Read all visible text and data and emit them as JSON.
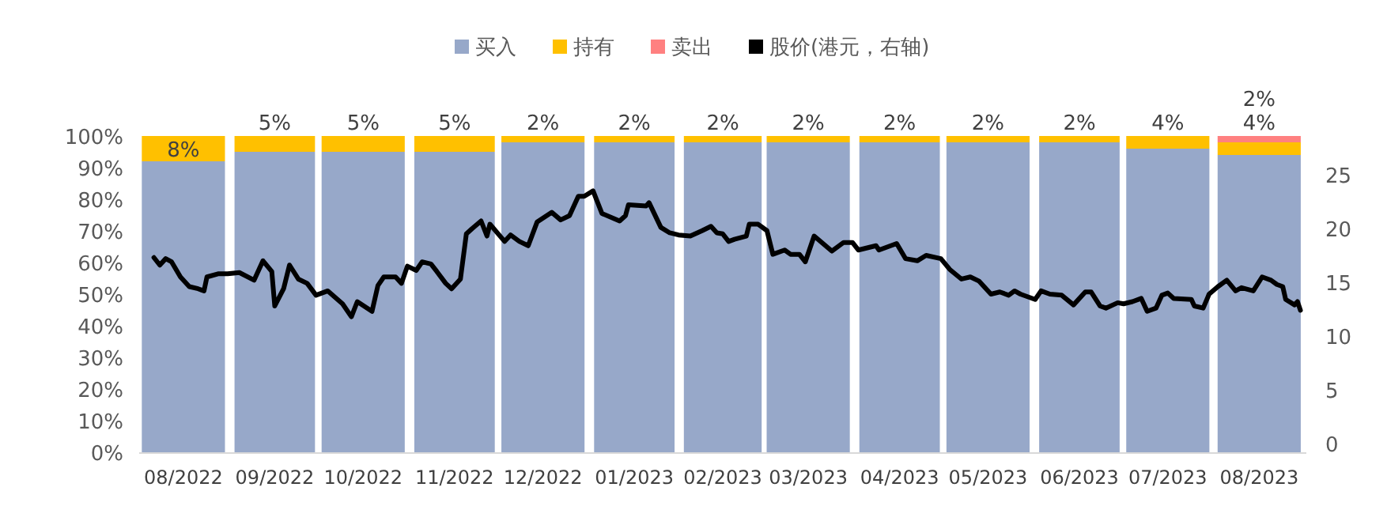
{
  "chart_data": {
    "type": "bar",
    "stacked": true,
    "legend": "top",
    "x": [
      "2022-08-16",
      "2022-09-16",
      "2022-10-16",
      "2022-11-16",
      "2022-12-16",
      "2023-01-16",
      "2023-02-15",
      "2023-03-16",
      "2023-04-16",
      "2023-05-16",
      "2023-06-16",
      "2023-07-16",
      "2023-08-16"
    ],
    "xlim": [
      "2022-08-01",
      "2023-09-01"
    ],
    "xticks": [
      {
        "value": "2022-08-16",
        "label": "08/2022"
      },
      {
        "value": "2022-09-16",
        "label": "09/2022"
      },
      {
        "value": "2022-10-16",
        "label": "10/2022"
      },
      {
        "value": "2022-11-16",
        "label": "11/2022"
      },
      {
        "value": "2022-12-16",
        "label": "12/2022"
      },
      {
        "value": "2023-01-16",
        "label": "01/2023"
      },
      {
        "value": "2023-02-15",
        "label": "02/2023"
      },
      {
        "value": "2023-03-16",
        "label": "03/2023"
      },
      {
        "value": "2023-04-16",
        "label": "04/2023"
      },
      {
        "value": "2023-05-16",
        "label": "05/2023"
      },
      {
        "value": "2023-06-16",
        "label": "06/2023"
      },
      {
        "value": "2023-07-16",
        "label": "07/2023"
      },
      {
        "value": "2023-08-16",
        "label": "08/2023"
      }
    ],
    "ylim": [
      0,
      100
    ],
    "yticks": [
      {
        "value": 0,
        "label": "0%"
      },
      {
        "value": 10,
        "label": "10%"
      },
      {
        "value": 20,
        "label": "20%"
      },
      {
        "value": 30,
        "label": "30%"
      },
      {
        "value": 40,
        "label": "40%"
      },
      {
        "value": 50,
        "label": "50%"
      },
      {
        "value": 60,
        "label": "60%"
      },
      {
        "value": 70,
        "label": "70%"
      },
      {
        "value": 80,
        "label": "80%"
      },
      {
        "value": 90,
        "label": "90%"
      },
      {
        "value": 100,
        "label": "100%"
      }
    ],
    "y2lim": [
      -0.8,
      28.6
    ],
    "y2ticks": [
      0,
      5,
      10,
      15,
      20,
      25
    ],
    "series": [
      {
        "name": "买入",
        "color": "#97a8c9",
        "values": [
          92,
          95,
          95,
          95,
          98,
          98,
          98,
          98,
          98,
          98,
          98,
          96,
          94
        ]
      },
      {
        "name": "持有",
        "color": "#ffc000",
        "values": [
          8,
          5,
          5,
          5,
          2,
          2,
          2,
          2,
          2,
          2,
          2,
          4,
          4
        ],
        "value_labels": [
          "8%",
          "5%",
          "5%",
          "5%",
          "2%",
          "2%",
          "2%",
          "2%",
          "2%",
          "2%",
          "2%",
          "4%",
          "4%"
        ]
      },
      {
        "name": "卖出",
        "color": "#ff8080",
        "values": [
          0,
          0,
          0,
          0,
          0,
          0,
          0,
          0,
          0,
          0,
          0,
          0,
          2
        ],
        "value_labels": [
          null,
          null,
          null,
          null,
          null,
          null,
          null,
          null,
          null,
          null,
          null,
          null,
          "2%"
        ]
      },
      {
        "name": "股价(港元，右轴)",
        "type": "line",
        "axis": "y2",
        "color": "#000000",
        "x": [
          "2022-08-06",
          "2022-08-08",
          "2022-08-10",
          "2022-08-12",
          "2022-08-15",
          "2022-08-18",
          "2022-08-21",
          "2022-08-23",
          "2022-08-24",
          "2022-08-28",
          "2022-08-31",
          "2022-09-04",
          "2022-09-09",
          "2022-09-12",
          "2022-09-15",
          "2022-09-16",
          "2022-09-19",
          "2022-09-21",
          "2022-09-24",
          "2022-09-27",
          "2022-09-30",
          "2022-10-04",
          "2022-10-09",
          "2022-10-12",
          "2022-10-14",
          "2022-10-19",
          "2022-10-21",
          "2022-10-23",
          "2022-10-27",
          "2022-10-29",
          "2022-10-31",
          "2022-11-03",
          "2022-11-05",
          "2022-11-08",
          "2022-11-10",
          "2022-11-13",
          "2022-11-15",
          "2022-11-18",
          "2022-11-20",
          "2022-11-22",
          "2022-11-25",
          "2022-11-27",
          "2022-11-28",
          "2022-12-03",
          "2022-12-05",
          "2022-12-08",
          "2022-12-11",
          "2022-12-14",
          "2022-12-19",
          "2022-12-22",
          "2022-12-25",
          "2022-12-28",
          "2022-12-30",
          "2023-01-02",
          "2023-01-05",
          "2023-01-11",
          "2023-01-13",
          "2023-01-14",
          "2023-01-20",
          "2023-01-21",
          "2023-01-25",
          "2023-01-28",
          "2023-01-31",
          "2023-02-04",
          "2023-02-08",
          "2023-02-11",
          "2023-02-13",
          "2023-02-15",
          "2023-02-17",
          "2023-02-19",
          "2023-02-23",
          "2023-02-24",
          "2023-02-27",
          "2023-03-02",
          "2023-03-04",
          "2023-03-08",
          "2023-03-10",
          "2023-03-13",
          "2023-03-15",
          "2023-03-18",
          "2023-03-24",
          "2023-03-28",
          "2023-03-31",
          "2023-04-02",
          "2023-04-08",
          "2023-04-09",
          "2023-04-15",
          "2023-04-18",
          "2023-04-22",
          "2023-04-25",
          "2023-04-30",
          "2023-05-03",
          "2023-05-07",
          "2023-05-10",
          "2023-05-13",
          "2023-05-17",
          "2023-05-20",
          "2023-05-23",
          "2023-05-25",
          "2023-05-27",
          "2023-06-01",
          "2023-06-03",
          "2023-06-06",
          "2023-06-10",
          "2023-06-14",
          "2023-06-18",
          "2023-06-20",
          "2023-06-23",
          "2023-06-25",
          "2023-06-29",
          "2023-07-01",
          "2023-07-04",
          "2023-07-07",
          "2023-07-09",
          "2023-07-12",
          "2023-07-14",
          "2023-07-16",
          "2023-07-18",
          "2023-07-24",
          "2023-07-25",
          "2023-07-28",
          "2023-07-30",
          "2023-08-02",
          "2023-08-05",
          "2023-08-08",
          "2023-08-10",
          "2023-08-14",
          "2023-08-17",
          "2023-08-20",
          "2023-08-22",
          "2023-08-24",
          "2023-08-25",
          "2023-08-28",
          "2023-08-29",
          "2023-08-30"
        ],
        "values": [
          17.3,
          16.6,
          17.2,
          16.9,
          15.5,
          14.6,
          14.4,
          14.2,
          15.5,
          15.8,
          15.8,
          15.9,
          15.2,
          17.0,
          16.0,
          12.8,
          14.4,
          16.6,
          15.3,
          14.9,
          13.8,
          14.2,
          13.0,
          11.8,
          13.2,
          12.3,
          14.7,
          15.5,
          15.5,
          14.9,
          16.5,
          16.1,
          16.9,
          16.7,
          16.0,
          14.9,
          14.4,
          15.3,
          19.5,
          20.0,
          20.7,
          19.3,
          20.4,
          18.8,
          19.4,
          18.8,
          18.4,
          20.6,
          21.5,
          20.8,
          21.2,
          23.0,
          23.0,
          23.5,
          21.4,
          20.7,
          21.2,
          22.2,
          22.1,
          22.4,
          20.1,
          19.6,
          19.4,
          19.3,
          19.8,
          20.2,
          19.6,
          19.5,
          18.8,
          19.0,
          19.3,
          20.4,
          20.4,
          19.8,
          17.6,
          18.0,
          17.6,
          17.6,
          16.9,
          19.3,
          17.9,
          18.7,
          18.7,
          18.0,
          18.4,
          18.0,
          18.6,
          17.2,
          17.0,
          17.5,
          17.2,
          16.2,
          15.3,
          15.5,
          15.1,
          13.9,
          14.1,
          13.8,
          14.2,
          13.9,
          13.4,
          14.2,
          13.9,
          13.8,
          12.9,
          14.1,
          14.1,
          12.8,
          12.6,
          13.1,
          13.0,
          13.2,
          13.5,
          12.3,
          12.6,
          13.8,
          14.0,
          13.5,
          13.4,
          12.8,
          12.6,
          13.9,
          14.6,
          15.2,
          14.2,
          14.5,
          14.2,
          15.5,
          15.2,
          14.8,
          14.6,
          13.4,
          12.9,
          13.2,
          12.4
        ]
      }
    ]
  }
}
